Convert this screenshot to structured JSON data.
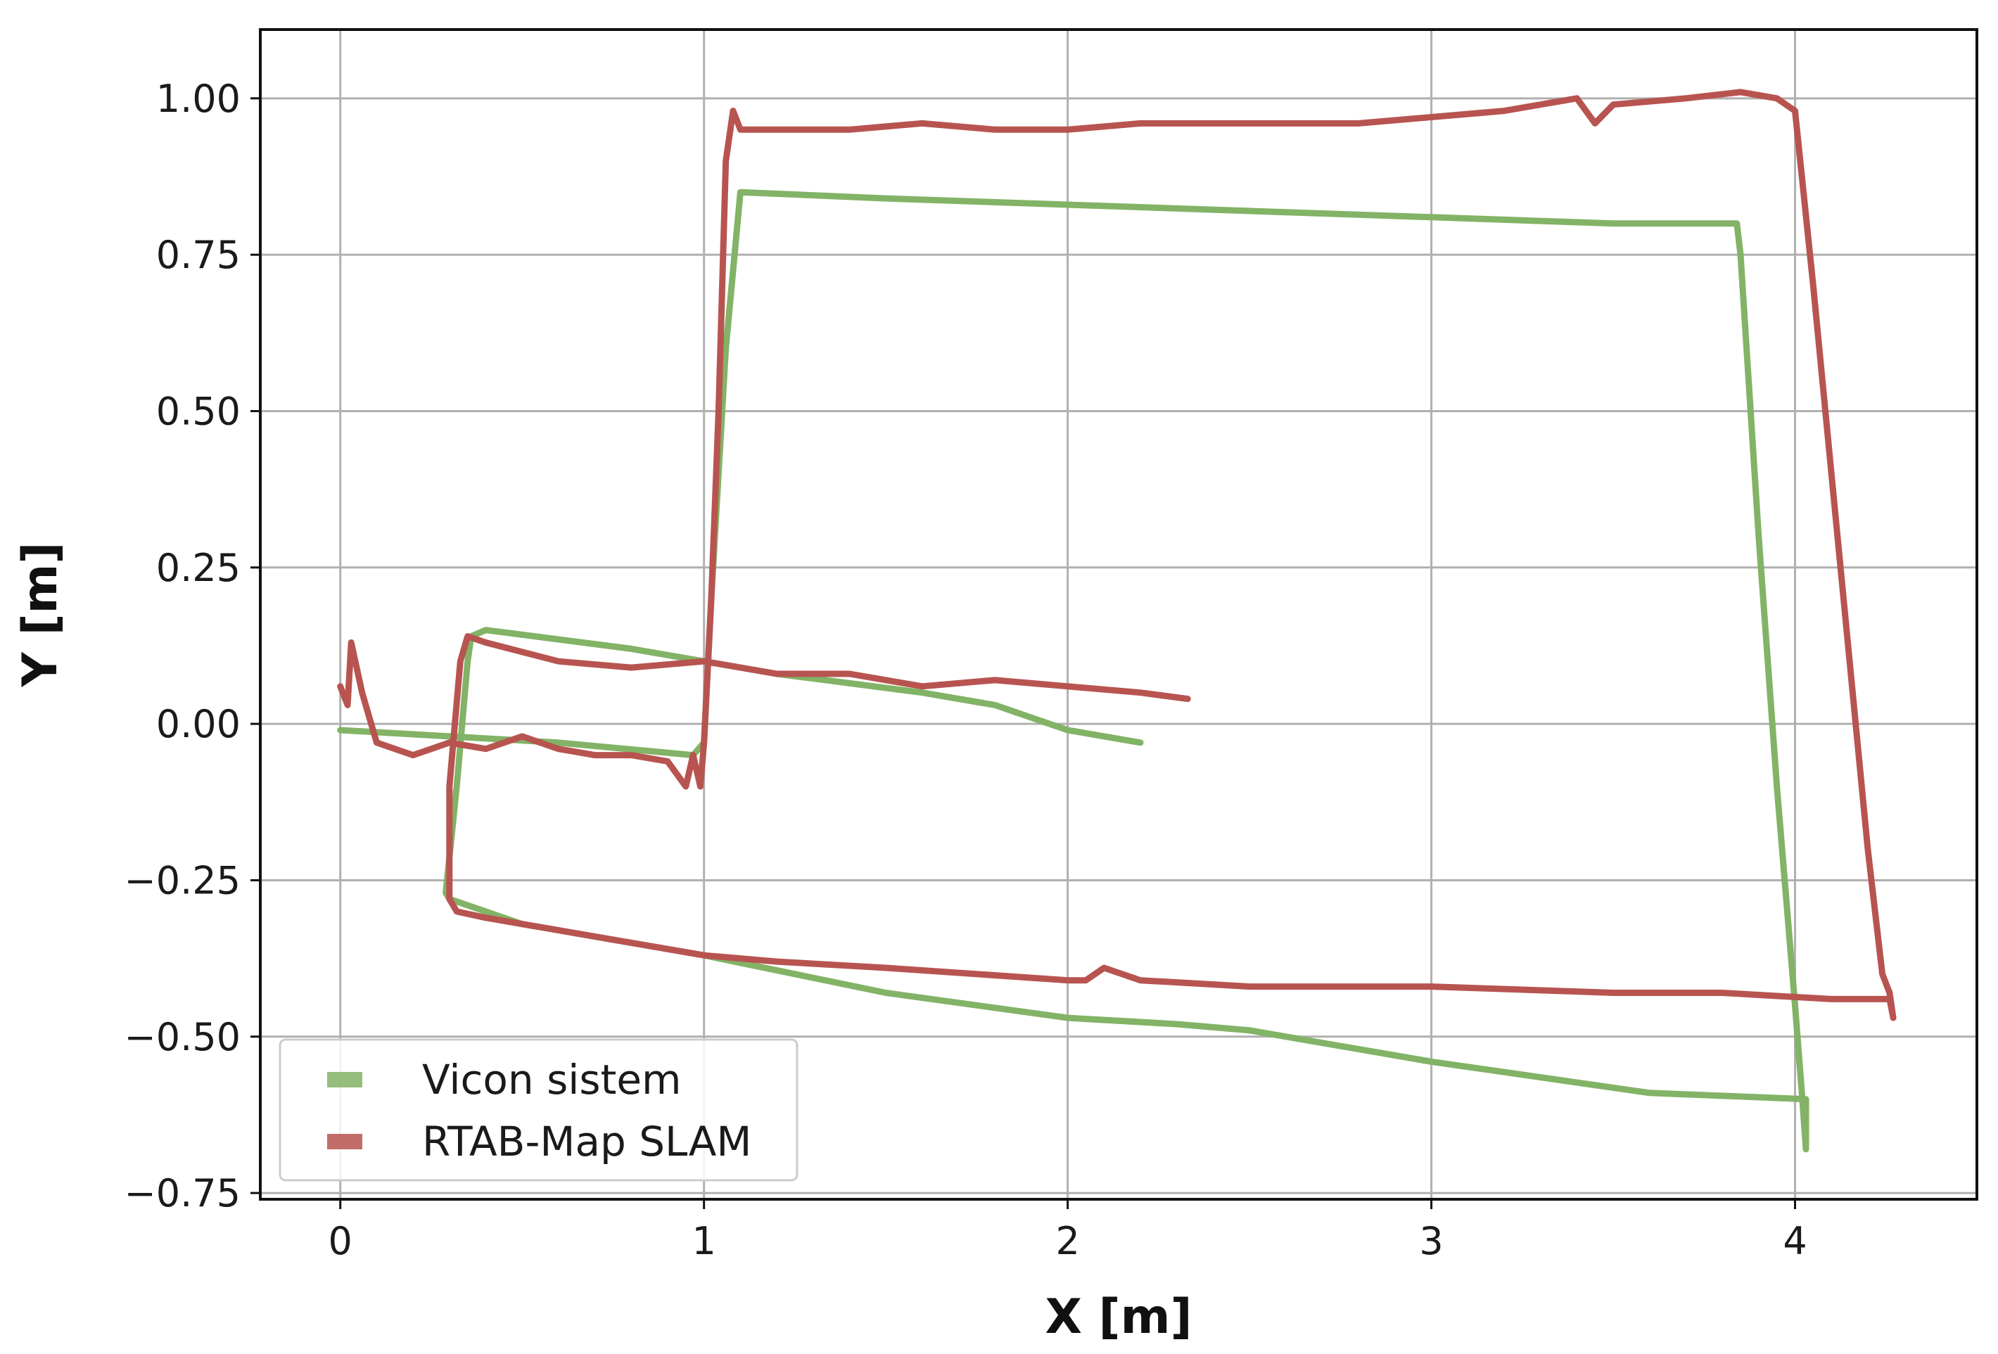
{
  "chart_data": {
    "type": "line",
    "xlabel": "X [m]",
    "ylabel": "Y [m]",
    "xlim": [
      -0.22,
      4.5
    ],
    "ylim": [
      -0.76,
      1.11
    ],
    "x_ticks": [
      0,
      1,
      2,
      3,
      4
    ],
    "x_tick_labels": [
      "0",
      "1",
      "2",
      "3",
      "4"
    ],
    "y_ticks": [
      1.0,
      0.75,
      0.5,
      0.25,
      0.0,
      -0.25,
      -0.5,
      -0.75
    ],
    "y_tick_labels": [
      "1.00",
      "0.75",
      "0.50",
      "0.25",
      "0.00",
      "−0.25",
      "−0.50",
      "−0.75"
    ],
    "grid": true,
    "legend_position": "bottom-left",
    "series": [
      {
        "name": "Vicon sistem",
        "color": "#82b366",
        "x": [
          0.0,
          0.3,
          0.6,
          0.97,
          1.0,
          1.02,
          1.06,
          1.1,
          1.5,
          2.0,
          2.5,
          3.0,
          3.5,
          3.84,
          3.85,
          3.9,
          3.95,
          4.0,
          4.02,
          4.03,
          4.03,
          3.6,
          3.0,
          2.5,
          2.3,
          2.0,
          1.5,
          1.0,
          0.5,
          0.3,
          0.29,
          0.32,
          0.35,
          0.36,
          0.4,
          0.8,
          1.2,
          1.6,
          1.8,
          2.0,
          2.2
        ],
        "y": [
          -0.01,
          -0.02,
          -0.03,
          -0.05,
          -0.03,
          0.2,
          0.6,
          0.85,
          0.84,
          0.83,
          0.82,
          0.81,
          0.8,
          0.8,
          0.75,
          0.3,
          -0.1,
          -0.45,
          -0.6,
          -0.68,
          -0.6,
          -0.59,
          -0.54,
          -0.49,
          -0.48,
          -0.47,
          -0.43,
          -0.37,
          -0.32,
          -0.28,
          -0.27,
          -0.1,
          0.1,
          0.14,
          0.15,
          0.12,
          0.08,
          0.05,
          0.03,
          -0.01,
          -0.03
        ]
      },
      {
        "name": "RTAB-Map SLAM",
        "color": "#b85450",
        "x": [
          0.0,
          0.02,
          0.03,
          0.06,
          0.1,
          0.2,
          0.3,
          0.4,
          0.5,
          0.6,
          0.7,
          0.8,
          0.9,
          0.95,
          0.97,
          0.99,
          1.0,
          1.02,
          1.04,
          1.06,
          1.08,
          1.1,
          1.2,
          1.4,
          1.6,
          1.8,
          2.0,
          2.2,
          2.4,
          2.6,
          2.8,
          3.0,
          3.2,
          3.4,
          3.45,
          3.5,
          3.7,
          3.85,
          3.95,
          4.0,
          4.05,
          4.1,
          4.15,
          4.2,
          4.24,
          4.26,
          4.27,
          4.26,
          4.1,
          3.8,
          3.5,
          3.0,
          2.5,
          2.2,
          2.1,
          2.05,
          2.0,
          1.5,
          1.2,
          1.0,
          0.8,
          0.6,
          0.4,
          0.32,
          0.3,
          0.3,
          0.33,
          0.35,
          0.4,
          0.6,
          0.8,
          1.0,
          1.2,
          1.4,
          1.6,
          1.8,
          2.0,
          2.2,
          2.33
        ],
        "y": [
          0.06,
          0.03,
          0.13,
          0.05,
          -0.03,
          -0.05,
          -0.03,
          -0.04,
          -0.02,
          -0.04,
          -0.05,
          -0.05,
          -0.06,
          -0.1,
          -0.05,
          -0.1,
          -0.03,
          0.2,
          0.5,
          0.9,
          0.98,
          0.95,
          0.95,
          0.95,
          0.96,
          0.95,
          0.95,
          0.96,
          0.96,
          0.96,
          0.96,
          0.97,
          0.98,
          1.0,
          0.96,
          0.99,
          1.0,
          1.01,
          1.0,
          0.98,
          0.7,
          0.4,
          0.1,
          -0.2,
          -0.4,
          -0.43,
          -0.47,
          -0.44,
          -0.44,
          -0.43,
          -0.43,
          -0.42,
          -0.42,
          -0.41,
          -0.39,
          -0.41,
          -0.41,
          -0.39,
          -0.38,
          -0.37,
          -0.35,
          -0.33,
          -0.31,
          -0.3,
          -0.28,
          -0.1,
          0.1,
          0.14,
          0.13,
          0.1,
          0.09,
          0.1,
          0.08,
          0.08,
          0.06,
          0.07,
          0.06,
          0.05,
          0.04
        ]
      }
    ]
  }
}
